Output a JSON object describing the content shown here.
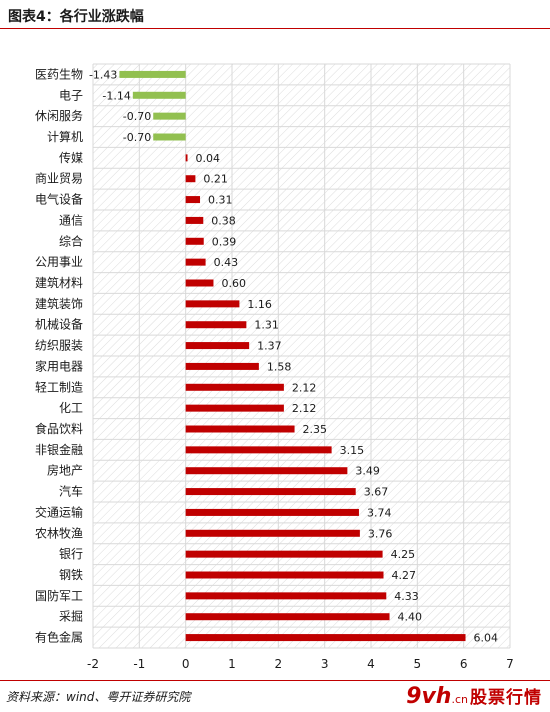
{
  "header": {
    "figure_title": "图表4：各行业涨跌幅"
  },
  "footer": {
    "source": "资料来源：wind、粤开证券研究院"
  },
  "watermark": {
    "mark": "9vh",
    "suffix": ".cn",
    "text": "股票行情"
  },
  "colors": {
    "positive": "#c00000",
    "negative": "#92c050",
    "grid": "#d9d9d9",
    "accent": "#c00000"
  },
  "chart_data": {
    "type": "bar",
    "orientation": "horizontal",
    "categories": [
      "医药生物",
      "电子",
      "休闲服务",
      "计算机",
      "传媒",
      "商业贸易",
      "电气设备",
      "通信",
      "综合",
      "公用事业",
      "建筑材料",
      "建筑装饰",
      "机械设备",
      "纺织服装",
      "家用电器",
      "轻工制造",
      "化工",
      "食品饮料",
      "非银金融",
      "房地产",
      "汽车",
      "交通运输",
      "农林牧渔",
      "银行",
      "钢铁",
      "国防军工",
      "采掘",
      "有色金属"
    ],
    "values": [
      -1.43,
      -1.14,
      -0.7,
      -0.7,
      0.04,
      0.21,
      0.31,
      0.38,
      0.39,
      0.43,
      0.6,
      1.16,
      1.31,
      1.37,
      1.58,
      2.12,
      2.12,
      2.35,
      3.15,
      3.49,
      3.67,
      3.74,
      3.76,
      4.25,
      4.27,
      4.33,
      4.4,
      6.04
    ],
    "value_labels": [
      "-1.43",
      "-1.14",
      "-0.70",
      "-0.70",
      "0.04",
      "0.21",
      "0.31",
      "0.38",
      "0.39",
      "0.43",
      "0.60",
      "1.16",
      "1.31",
      "1.37",
      "1.58",
      "2.12",
      "2.12",
      "2.35",
      "3.15",
      "3.49",
      "3.67",
      "3.74",
      "3.76",
      "4.25",
      "4.27",
      "4.33",
      "4.40",
      "6.04"
    ],
    "xlim": [
      -2,
      7
    ],
    "x_ticks": [
      "-2",
      "-1",
      "0",
      "1",
      "2",
      "3",
      "4",
      "5",
      "6",
      "7"
    ],
    "grid": true,
    "legend": "none"
  }
}
